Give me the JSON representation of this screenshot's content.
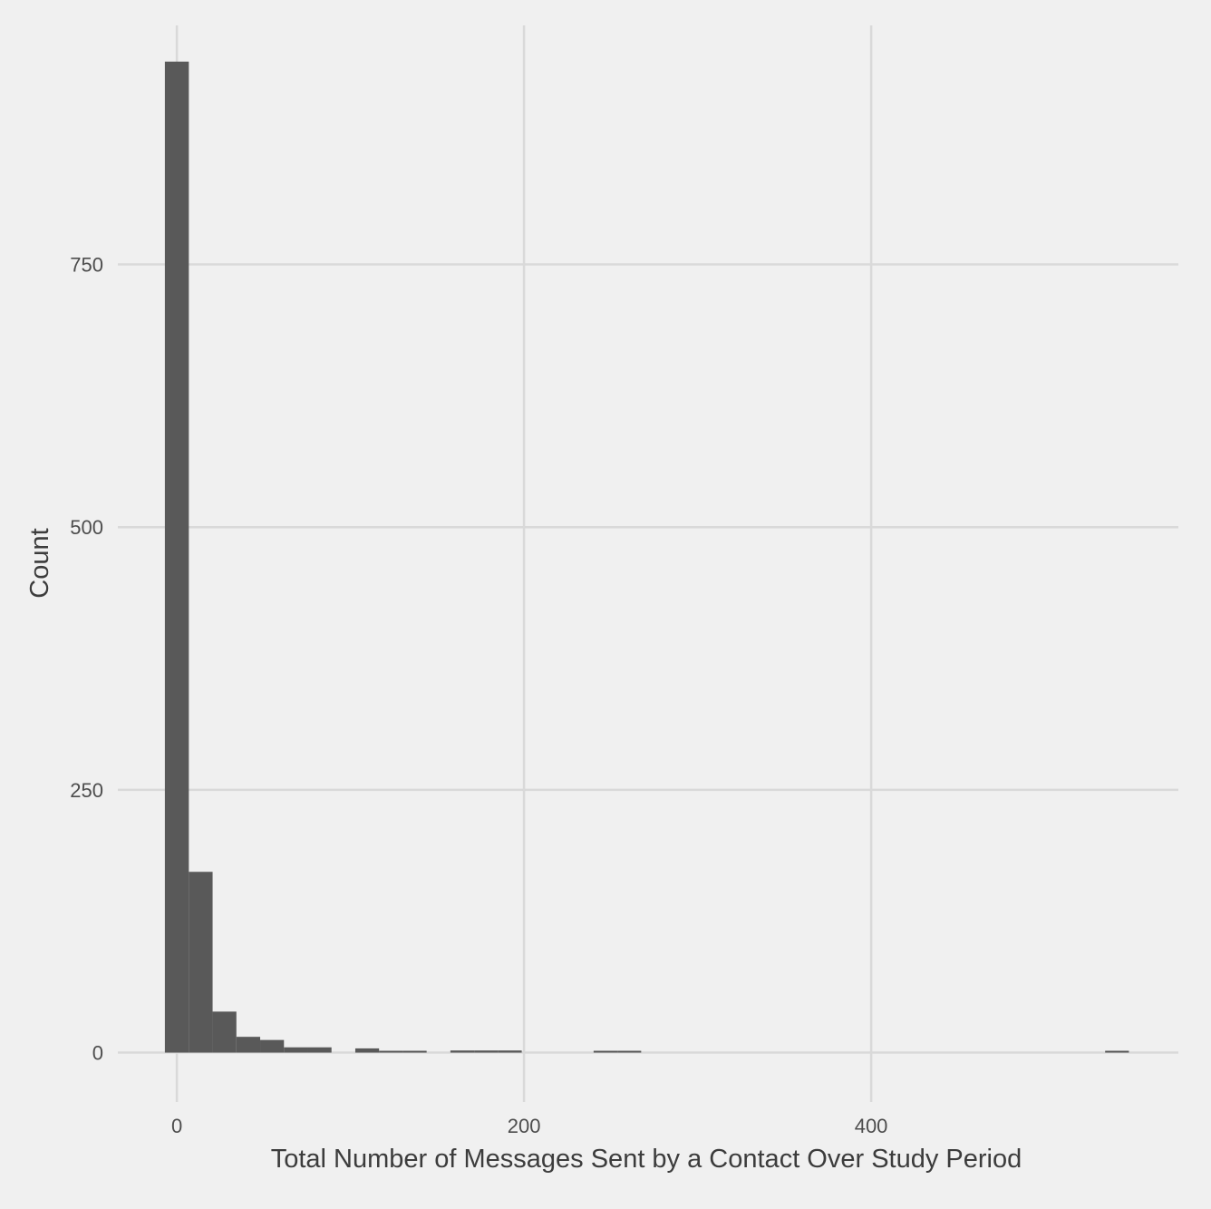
{
  "colors": {
    "background": "#f0f0f0",
    "bar_fill": "#595959",
    "gridline": "#d9d9d9",
    "text": "#4d4d4d"
  },
  "chart_data": {
    "type": "bar",
    "title": "",
    "xlabel": "Total Number of Messages Sent by a Contact Over Study Period",
    "ylabel": "Count",
    "x_ticks": [
      0,
      200,
      400
    ],
    "y_ticks": [
      0,
      250,
      500,
      750
    ],
    "x_tick_labels": [
      "0",
      "200",
      "400"
    ],
    "y_tick_labels": [
      "0",
      "250",
      "500",
      "750"
    ],
    "xlim": [
      -34,
      577
    ],
    "ylim": [
      -47,
      993
    ],
    "grid": true,
    "legend": "none",
    "bin_width": 13.7,
    "bins": [
      {
        "x_start": -6.9,
        "x_end": 6.9,
        "count": 943
      },
      {
        "x_start": 6.9,
        "x_end": 20.6,
        "count": 172
      },
      {
        "x_start": 20.6,
        "x_end": 34.3,
        "count": 39
      },
      {
        "x_start": 34.3,
        "x_end": 48.0,
        "count": 15
      },
      {
        "x_start": 48.0,
        "x_end": 61.7,
        "count": 12
      },
      {
        "x_start": 61.7,
        "x_end": 75.4,
        "count": 5
      },
      {
        "x_start": 75.4,
        "x_end": 89.1,
        "count": 5
      },
      {
        "x_start": 102.8,
        "x_end": 116.5,
        "count": 4
      },
      {
        "x_start": 116.5,
        "x_end": 130.2,
        "count": 1
      },
      {
        "x_start": 130.2,
        "x_end": 143.9,
        "count": 1
      },
      {
        "x_start": 157.6,
        "x_end": 171.3,
        "count": 2
      },
      {
        "x_start": 171.3,
        "x_end": 185.0,
        "count": 2
      },
      {
        "x_start": 185.0,
        "x_end": 198.7,
        "count": 2
      },
      {
        "x_start": 240.1,
        "x_end": 253.8,
        "count": 1
      },
      {
        "x_start": 253.8,
        "x_end": 267.5,
        "count": 1
      },
      {
        "x_start": 534.8,
        "x_end": 548.5,
        "count": 1
      }
    ]
  }
}
